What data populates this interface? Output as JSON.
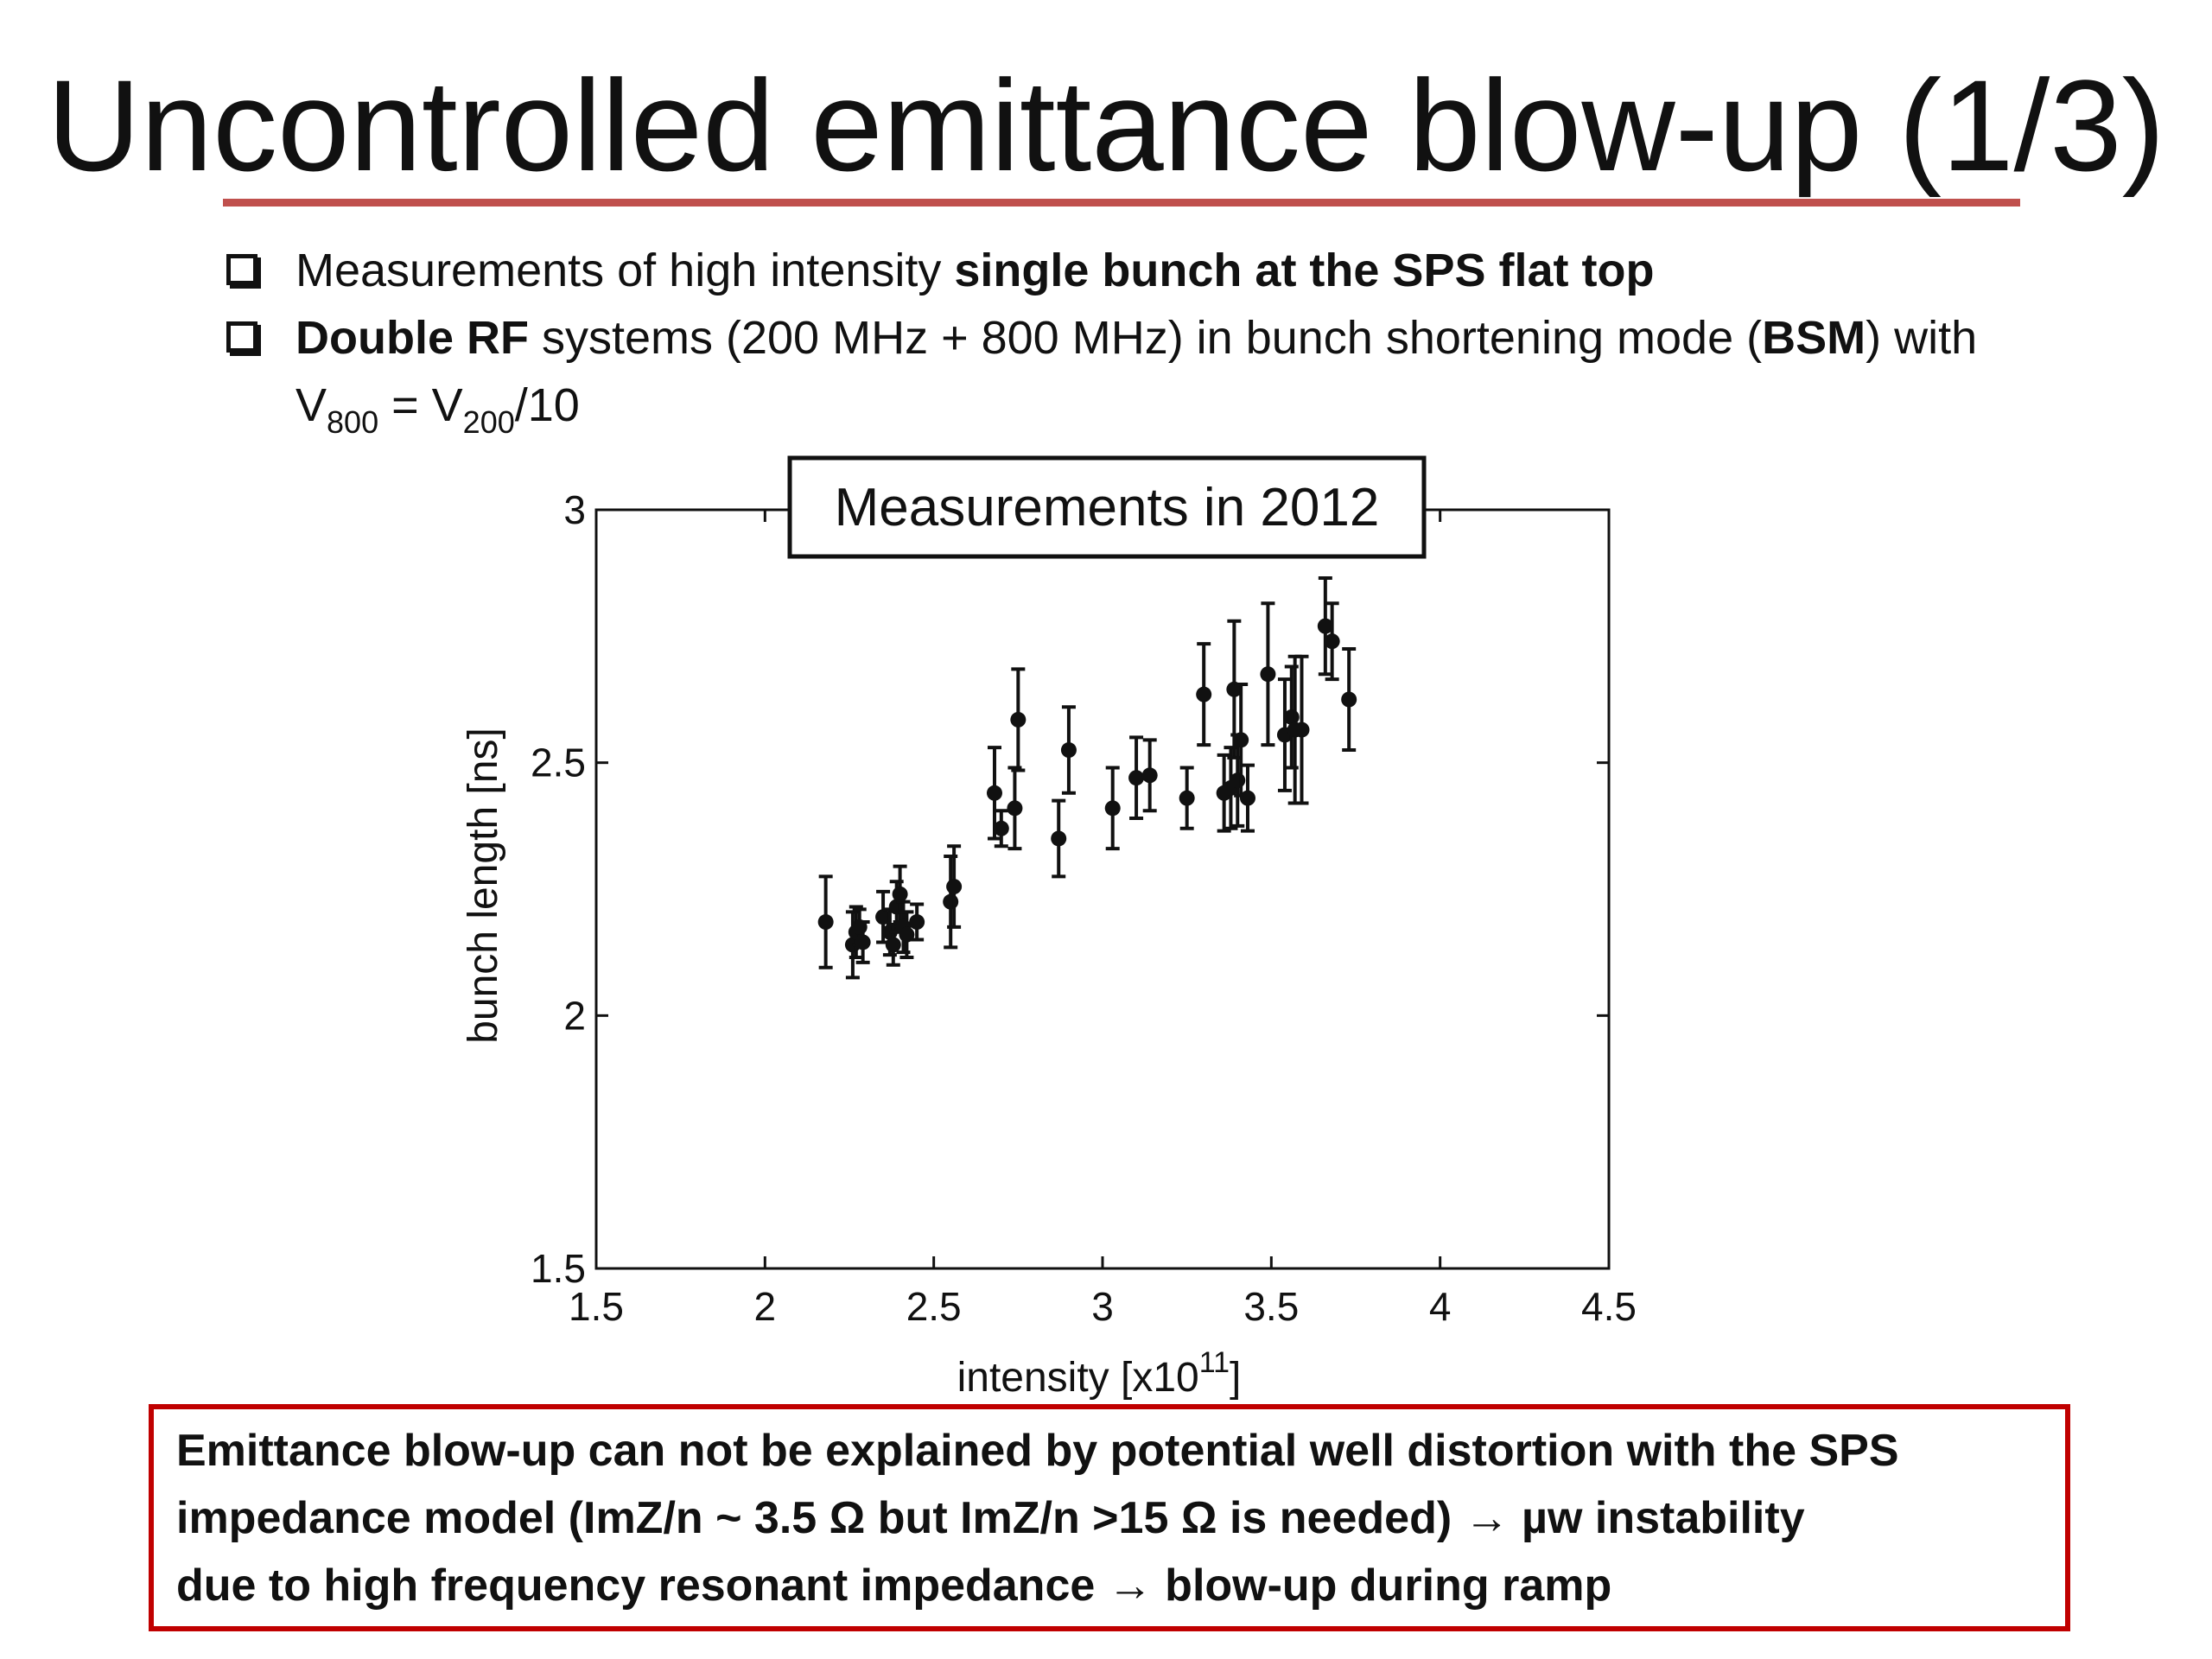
{
  "slide": {
    "title": "Uncontrolled emittance blow-up (1/3)",
    "accent_color": "#c0504d"
  },
  "bullets": [
    {
      "pre": "Measurements of high intensity ",
      "bold": "single bunch at the SPS flat top"
    },
    {
      "bold1": "Double RF",
      "mid": " systems (200 MHz + 800 MHz) in bunch shortening mode (",
      "bold2": "BSM",
      "post": ") with",
      "line2_v": "V",
      "line2_sub1": "800",
      "line2_eq": " = V",
      "line2_sub2": "200",
      "line2_post": "/10"
    }
  ],
  "chart_data": {
    "type": "scatter",
    "title": "Measurements in 2012",
    "xlabel": "intensity [x10",
    "xlabel_sup": "11",
    "xlabel_end": "]",
    "ylabel": "bunch length [ns]",
    "xlim": [
      1.5,
      4.5
    ],
    "ylim": [
      1.5,
      3
    ],
    "xticks": [
      "1.5",
      "2",
      "2.5",
      "3",
      "3.5",
      "4",
      "4.5"
    ],
    "yticks": [
      "1.5",
      "2",
      "2.5",
      "3"
    ],
    "grid": false,
    "points": [
      {
        "x": 2.18,
        "y": 2.185,
        "err": 0.09
      },
      {
        "x": 2.26,
        "y": 2.14,
        "err": 0.065
      },
      {
        "x": 2.27,
        "y": 2.165,
        "err": 0.05
      },
      {
        "x": 2.28,
        "y": 2.175,
        "err": 0.035
      },
      {
        "x": 2.29,
        "y": 2.145,
        "err": 0.04
      },
      {
        "x": 2.35,
        "y": 2.195,
        "err": 0.05
      },
      {
        "x": 2.37,
        "y": 2.165,
        "err": 0.045
      },
      {
        "x": 2.38,
        "y": 2.14,
        "err": 0.04
      },
      {
        "x": 2.39,
        "y": 2.215,
        "err": 0.05
      },
      {
        "x": 2.4,
        "y": 2.24,
        "err": 0.055
      },
      {
        "x": 2.41,
        "y": 2.175,
        "err": 0.05
      },
      {
        "x": 2.42,
        "y": 2.16,
        "err": 0.045
      },
      {
        "x": 2.45,
        "y": 2.185,
        "err": 0.035
      },
      {
        "x": 2.55,
        "y": 2.225,
        "err": 0.09
      },
      {
        "x": 2.56,
        "y": 2.255,
        "err": 0.08
      },
      {
        "x": 2.68,
        "y": 2.44,
        "err": 0.09
      },
      {
        "x": 2.7,
        "y": 2.37,
        "err": 0.035
      },
      {
        "x": 2.74,
        "y": 2.41,
        "err": 0.08
      },
      {
        "x": 2.75,
        "y": 2.585,
        "err": 0.1
      },
      {
        "x": 2.87,
        "y": 2.35,
        "err": 0.075
      },
      {
        "x": 2.9,
        "y": 2.525,
        "err": 0.085
      },
      {
        "x": 3.03,
        "y": 2.41,
        "err": 0.08
      },
      {
        "x": 3.1,
        "y": 2.47,
        "err": 0.08
      },
      {
        "x": 3.14,
        "y": 2.475,
        "err": 0.07
      },
      {
        "x": 3.25,
        "y": 2.43,
        "err": 0.06
      },
      {
        "x": 3.3,
        "y": 2.635,
        "err": 0.1
      },
      {
        "x": 3.36,
        "y": 2.44,
        "err": 0.075
      },
      {
        "x": 3.38,
        "y": 2.45,
        "err": 0.08
      },
      {
        "x": 3.39,
        "y": 2.645,
        "err": 0.135
      },
      {
        "x": 3.4,
        "y": 2.465,
        "err": 0.09
      },
      {
        "x": 3.41,
        "y": 2.545,
        "err": 0.11
      },
      {
        "x": 3.43,
        "y": 2.43,
        "err": 0.065
      },
      {
        "x": 3.49,
        "y": 2.675,
        "err": 0.14
      },
      {
        "x": 3.54,
        "y": 2.555,
        "err": 0.11
      },
      {
        "x": 3.56,
        "y": 2.59,
        "err": 0.1
      },
      {
        "x": 3.57,
        "y": 2.565,
        "err": 0.145
      },
      {
        "x": 3.59,
        "y": 2.565,
        "err": 0.145
      },
      {
        "x": 3.66,
        "y": 2.77,
        "err": 0.095
      },
      {
        "x": 3.68,
        "y": 2.74,
        "err": 0.075
      },
      {
        "x": 3.73,
        "y": 2.625,
        "err": 0.1
      }
    ]
  },
  "conclusion": {
    "line1": "Emittance blow-up can not be explained by potential well distortion with the SPS",
    "line2": "impedance model (ImZ/n ~ 3.5 Ω but ImZ/n >15 Ω is needed) → µw instability",
    "line3": "due to high frequency resonant impedance → blow-up during ramp",
    "border_color": "#c00000"
  }
}
